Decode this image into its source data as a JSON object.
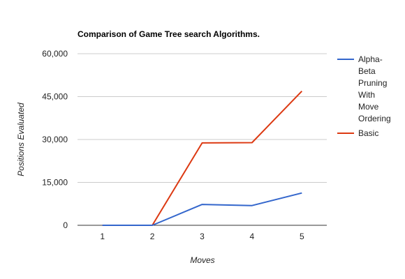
{
  "chart_data": {
    "type": "line",
    "title": "Comparison of Game Tree search Algorithms.",
    "xlabel": "Moves",
    "ylabel": "Positions Evaluated",
    "categories": [
      "1",
      "2",
      "3",
      "4",
      "5"
    ],
    "ylim": [
      0,
      60000
    ],
    "yticks": [
      0,
      15000,
      30000,
      45000,
      60000
    ],
    "ytick_labels": [
      "0",
      "15,000",
      "30,000",
      "45,000",
      "60,000"
    ],
    "grid": true,
    "legend_position": "right",
    "series": [
      {
        "name": "Alpha-Beta Pruning With Move Ordering",
        "legend_lines": [
          "Alpha-",
          "Beta",
          "Pruning",
          "With",
          "Move",
          "Ordering"
        ],
        "color": "#3366cc",
        "values": [
          0,
          0,
          7300,
          6900,
          11300
        ]
      },
      {
        "name": "Basic",
        "legend_lines": [
          "Basic"
        ],
        "color": "#dc3912",
        "values": [
          0,
          0,
          28800,
          28900,
          46900
        ]
      }
    ]
  }
}
